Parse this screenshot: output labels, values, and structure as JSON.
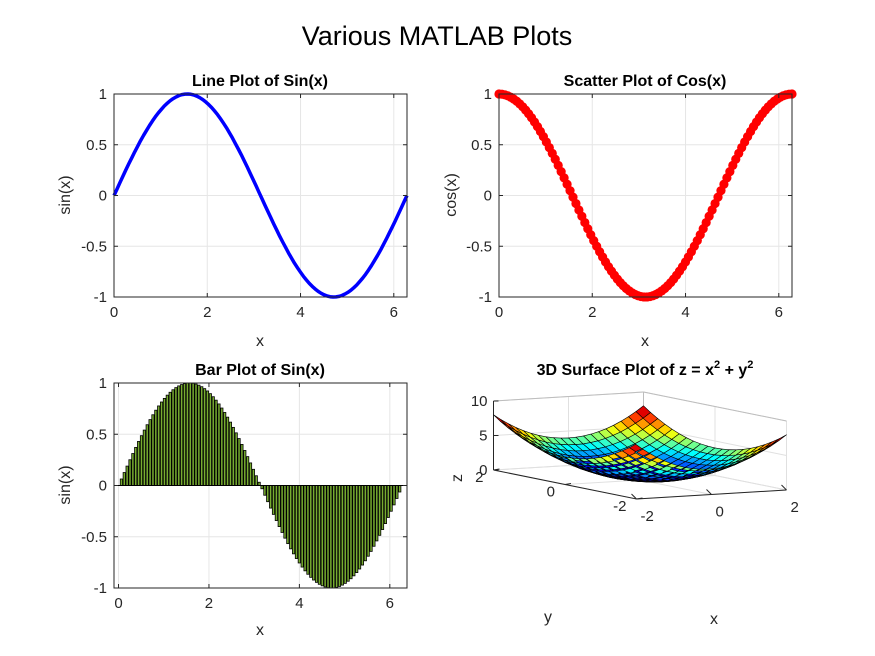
{
  "figure_title": "Various MATLAB Plots",
  "colors": {
    "line": "#0000ff",
    "scatter": "#ff0000",
    "bar_fill": "#77ac30",
    "bar_edge": "#000000",
    "grid": "#e6e6e6",
    "axis": "#262626"
  },
  "chart_data": [
    {
      "type": "line",
      "title": "Line Plot of Sin(x)",
      "xlabel": "x",
      "ylabel": "sin(x)",
      "function": "sin",
      "x_range": [
        0,
        6.2832
      ],
      "samples": 100,
      "xlim": [
        0,
        6.2832
      ],
      "ylim": [
        -1,
        1
      ],
      "xticks": [
        "0",
        "2",
        "4",
        "6"
      ],
      "yticks": [
        "-1",
        "-0.5",
        "0",
        "0.5",
        "1"
      ],
      "series_color": "#0000ff",
      "grid": true
    },
    {
      "type": "scatter",
      "title": "Scatter Plot of Cos(x)",
      "xlabel": "x",
      "ylabel": "cos(x)",
      "function": "cos",
      "x_range": [
        0,
        6.2832
      ],
      "samples": 100,
      "xlim": [
        0,
        6.2832
      ],
      "ylim": [
        -1,
        1
      ],
      "xticks": [
        "0",
        "2",
        "4",
        "6"
      ],
      "yticks": [
        "-1",
        "-0.5",
        "0",
        "0.5",
        "1"
      ],
      "series_color": "#ff0000",
      "grid": true
    },
    {
      "type": "bar",
      "title": "Bar Plot of Sin(x)",
      "xlabel": "x",
      "ylabel": "sin(x)",
      "function": "sin",
      "x_range": [
        0,
        6.2832
      ],
      "samples": 100,
      "xlim": [
        -0.1,
        6.38
      ],
      "ylim": [
        -1,
        1
      ],
      "xticks": [
        "0",
        "2",
        "4",
        "6"
      ],
      "yticks": [
        "-1",
        "-0.5",
        "0",
        "0.5",
        "1"
      ],
      "series_color": "#77ac30",
      "grid": true
    },
    {
      "type": "surface",
      "title_main": "3D Surface Plot of z = x",
      "title_exp1": "2",
      "title_mid": " + y",
      "title_exp2": "2",
      "function": "x^2 + y^2",
      "x_range": [
        -2,
        2
      ],
      "y_range": [
        -2,
        2
      ],
      "grid_n": 21,
      "zlim": [
        0,
        10
      ],
      "xlabel": "x",
      "ylabel": "y",
      "zlabel": "z",
      "xticks": [
        "-2",
        "0",
        "2"
      ],
      "yticks": [
        "-2",
        "0",
        "2"
      ],
      "zticks": [
        "0",
        "5",
        "10"
      ],
      "colormap": "jet"
    }
  ]
}
